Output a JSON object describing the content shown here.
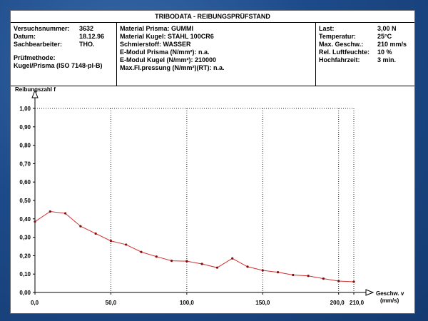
{
  "header": {
    "title": "TRIBODATA - REIBUNGSPRÜFSTAND"
  },
  "test_info": {
    "left": [
      {
        "label": "Versuchsnummer:",
        "value": "3632"
      },
      {
        "label": "Datum:",
        "value": "18.12.96"
      },
      {
        "label": "Sachbearbeiter:",
        "value": "THO."
      }
    ],
    "method_label": "Prüfmethode:",
    "method_value": "Kugel/Prisma (ISO 7148-pl-B)"
  },
  "materials": [
    "Material Prisma: GUMMI",
    "Material Kugel:  STAHL 100CR6",
    "Schmierstoff:    WASSER",
    "E-Modul Prisma (N/mm²): n.a.",
    "E-Modul Kugel (N/mm²):  210000",
    "Max.Fl.pressung (N/mm²)(RT): n.a."
  ],
  "conditions": [
    {
      "label": "Last:",
      "value": "3,00 N"
    },
    {
      "label": "Temperatur:",
      "value": "25°C"
    },
    {
      "label": "Max. Geschw.:",
      "value": "210 mm/s"
    },
    {
      "label": "Rel. Luftfeuchte:",
      "value": "10 %"
    },
    {
      "label": "Hochfahrzeit:",
      "value": "3 min."
    }
  ],
  "colors": {
    "series": "#d03030",
    "grid": "#222222",
    "background": "#1e4a86"
  },
  "chart_data": {
    "type": "line",
    "ylabel": "Reibungszahl f",
    "xlabel_line1": "Geschw. v",
    "xlabel_line2": "(mm/s)",
    "xlim": [
      0,
      210
    ],
    "ylim": [
      0,
      1
    ],
    "x_ticks": [
      0,
      50,
      100,
      150,
      200,
      210
    ],
    "x_tick_labels": [
      "0,0",
      "50,0",
      "100,0",
      "150,0",
      "200,0",
      "210,0"
    ],
    "y_ticks": [
      0,
      0.1,
      0.2,
      0.3,
      0.4,
      0.5,
      0.6,
      0.7,
      0.8,
      0.9,
      1.0
    ],
    "y_tick_labels": [
      "0,00",
      "0,10",
      "0,20",
      "0,30",
      "0,40",
      "0,50",
      "0,60",
      "0,70",
      "0,80",
      "0,90",
      "1,00"
    ],
    "grid": "vertical dotted at x ticks",
    "series": [
      {
        "x": [
          0,
          10,
          20,
          30,
          40,
          50,
          60,
          70,
          80,
          90,
          100,
          110,
          120,
          130,
          140,
          150,
          160,
          170,
          180,
          190,
          200,
          210
        ],
        "y": [
          0.385,
          0.44,
          0.43,
          0.36,
          0.32,
          0.28,
          0.26,
          0.22,
          0.195,
          0.172,
          0.17,
          0.155,
          0.135,
          0.185,
          0.14,
          0.12,
          0.11,
          0.095,
          0.09,
          0.075,
          0.062,
          0.058
        ]
      }
    ]
  }
}
